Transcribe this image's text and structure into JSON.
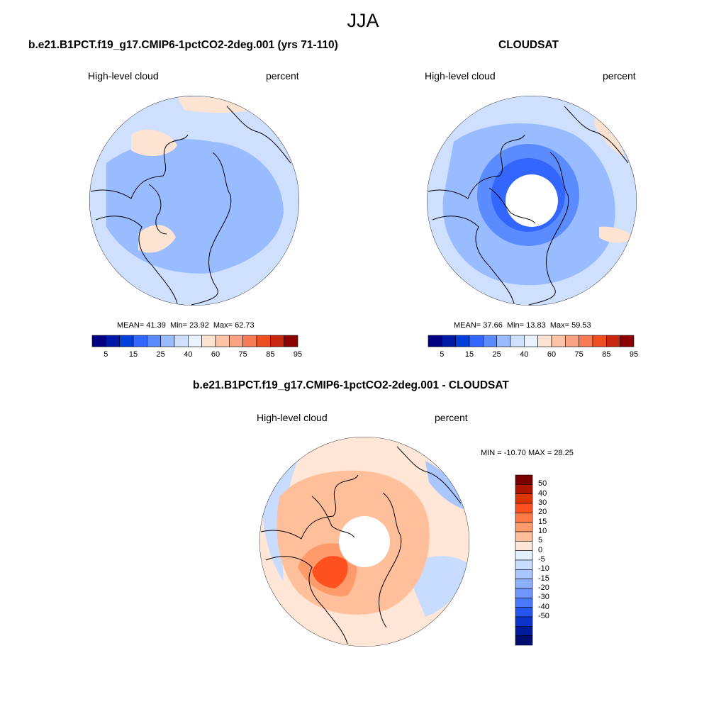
{
  "figure": {
    "title": "JJA"
  },
  "panels": [
    {
      "title": "b.e21.B1PCT.f19_g17.CMIP6-1pctCO2-2deg.001 (yrs 71-110)",
      "left_label": "High-level cloud",
      "right_label": "percent",
      "stats": {
        "mean_label": "MEAN=",
        "mean": "41.39",
        "min_label": "Min=",
        "min": "23.92",
        "max_label": "Max=",
        "max": "62.73"
      },
      "pole_hole": false
    },
    {
      "title": "CLOUDSAT",
      "left_label": "High-level cloud",
      "right_label": "percent",
      "stats": {
        "mean_label": "MEAN=",
        "mean": "37.66",
        "min_label": "Min=",
        "min": "13.83",
        "max_label": "Max=",
        "max": "59.53"
      },
      "pole_hole": true
    },
    {
      "title": "b.e21.B1PCT.f19_g17.CMIP6-1pctCO2-2deg.001 - CLOUDSAT",
      "left_label": "High-level cloud",
      "right_label": "percent",
      "stats_text": "MIN = -10.70 MAX =  28.25",
      "pole_hole": true
    }
  ],
  "colorbars": {
    "absolute": {
      "colors": [
        "#000080",
        "#0019a6",
        "#0040d9",
        "#3366ff",
        "#5b8cff",
        "#99bbff",
        "#cfe0ff",
        "#eaf3ff",
        "#fde3d2",
        "#fcc3a6",
        "#fba383",
        "#f77c55",
        "#ef4d22",
        "#c8280f",
        "#8b0000"
      ],
      "tick_labels": [
        "5",
        "15",
        "25",
        "40",
        "60",
        "75",
        "85",
        "95"
      ]
    },
    "difference": {
      "colors": [
        "#7a0000",
        "#ad1500",
        "#d93600",
        "#ff5020",
        "#ff7a45",
        "#ff9a6a",
        "#ffbf9a",
        "#ffe6d6",
        "#e4efff",
        "#c7dcff",
        "#a9c6ff",
        "#8cafff",
        "#6f96ff",
        "#4a78ff",
        "#2555f0",
        "#0b33cc",
        "#001c9e",
        "#000c72"
      ],
      "tick_labels": [
        "50",
        "40",
        "30",
        "20",
        "15",
        "10",
        "5",
        "0",
        "-5",
        "-10",
        "-15",
        "-20",
        "-30",
        "-40",
        "-50"
      ]
    }
  },
  "map_colors": {
    "panel1_base": "#cfe0ff",
    "panel1_inner": "#99bbff",
    "panel1_warm": "#fde3d2",
    "panel2_base": "#cfe0ff",
    "panel2_mid": "#99bbff",
    "panel2_ring": "#5b8cff",
    "panel2_inner": "#3366ff",
    "panel2_warm": "#fde3d2",
    "diff_base": "#ffe6d6",
    "diff_mid": "#ffbf9a",
    "diff_strong": "#ff9a6a",
    "diff_peak": "#ff5020",
    "diff_cool": "#c7dcff",
    "diff_cooler": "#a9c6ff",
    "coast": "#000000"
  }
}
